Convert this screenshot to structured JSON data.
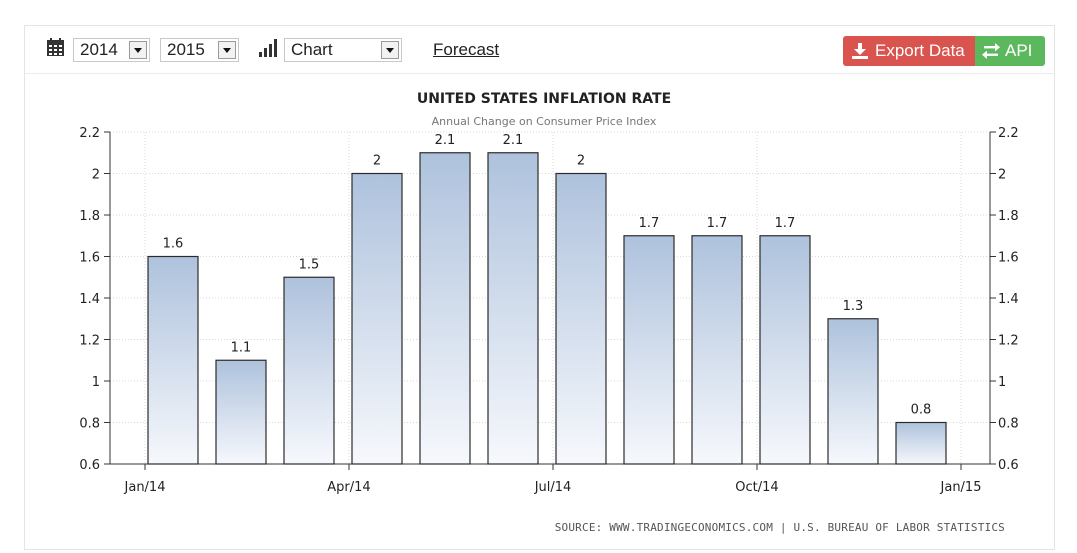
{
  "toolbar": {
    "calendar_icon": "calendar-icon",
    "start_year": "2014",
    "end_year": "2015",
    "chart_icon": "bar-chart-icon",
    "view_type": "Chart",
    "forecast_label": "Forecast",
    "export_label": "Export Data",
    "export_icon": "download-icon",
    "api_label": "API",
    "api_icon": "exchange-icon",
    "export_color": "#d9534f",
    "api_color": "#5cb85c"
  },
  "source_text": "SOURCE: WWW.TRADINGECONOMICS.COM | U.S. BUREAU OF LABOR STATISTICS",
  "chart_data": {
    "type": "bar",
    "title": "UNITED STATES INFLATION RATE",
    "subtitle": "Annual Change on Consumer Price Index",
    "categories": [
      "Jan 2014",
      "Feb 2014",
      "Mar 2014",
      "Apr 2014",
      "May 2014",
      "Jun 2014",
      "Jul 2014",
      "Aug 2014",
      "Sep 2014",
      "Oct 2014",
      "Nov 2014",
      "Dec 2014"
    ],
    "values": [
      1.6,
      1.1,
      1.5,
      2.0,
      2.1,
      2.1,
      2.0,
      1.7,
      1.7,
      1.7,
      1.3,
      0.8
    ],
    "data_labels": [
      "1.6",
      "1.1",
      "1.5",
      "2",
      "2.1",
      "2.1",
      "2",
      "1.7",
      "1.7",
      "1.7",
      "1.3",
      "0.8"
    ],
    "x_ticks": [
      "Jan/14",
      "Apr/14",
      "Jul/14",
      "Oct/14",
      "Jan/15"
    ],
    "y_ticks": [
      "0.6",
      "0.8",
      "1",
      "1.2",
      "1.4",
      "1.6",
      "1.8",
      "2",
      "2.2"
    ],
    "ylim": [
      0.6,
      2.2
    ],
    "grid": true,
    "dual_y_axis": true,
    "bar_gradient": [
      "#aec2dd",
      "#f6f8fc"
    ],
    "bar_border": "#2b2b2b"
  }
}
